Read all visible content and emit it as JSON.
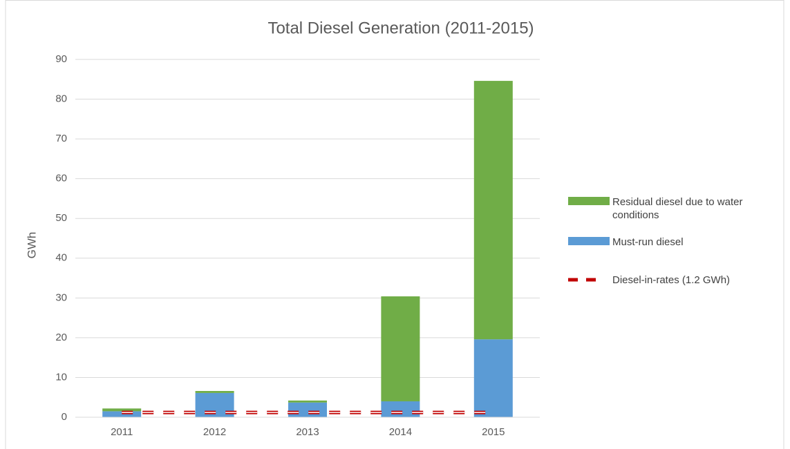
{
  "chart_data": {
    "type": "bar",
    "stacked": true,
    "title": "Total Diesel Generation (2011-2015)",
    "y_label": "GWh",
    "categories": [
      "2011",
      "2012",
      "2013",
      "2014",
      "2015"
    ],
    "series": [
      {
        "name": "Residual diesel due to water conditions",
        "color": "#70ad47",
        "type": "bar",
        "values": [
          0.7,
          0.5,
          0.5,
          26.4,
          65.0
        ]
      },
      {
        "name": "Must-run diesel",
        "color": "#5b9bd5",
        "type": "bar",
        "values": [
          1.5,
          6.1,
          3.7,
          4.0,
          19.6
        ]
      },
      {
        "name": "Diesel-in-rates (1.2 GWh)",
        "color": "#c00000",
        "type": "line",
        "dashed": true,
        "values": [
          1.2,
          1.2,
          1.2,
          1.2,
          1.2
        ]
      }
    ],
    "ylim": [
      0,
      90
    ],
    "yticks": [
      0,
      10,
      20,
      30,
      40,
      50,
      60,
      70,
      80,
      90
    ],
    "grid": true,
    "legend": "right"
  }
}
